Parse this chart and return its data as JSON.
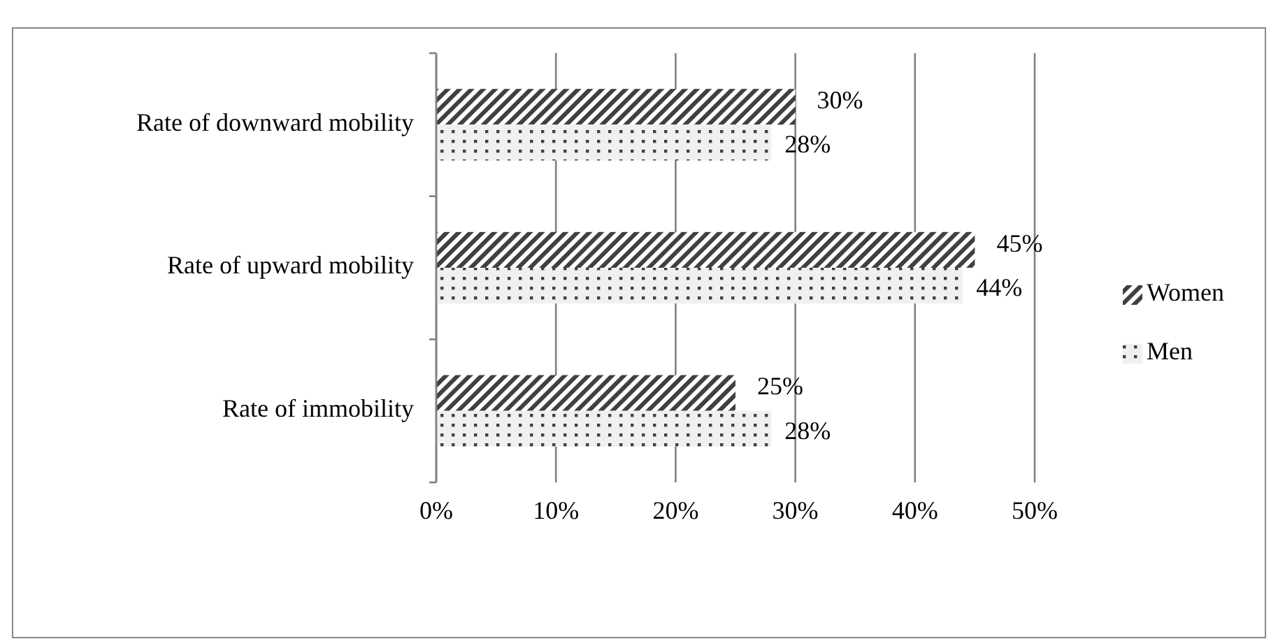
{
  "chart_data": {
    "type": "bar",
    "orientation": "horizontal",
    "categories": [
      "Rate of downward mobility",
      "Rate of upward mobility",
      "Rate of immobility"
    ],
    "series": [
      {
        "name": "Women",
        "color": "#404040",
        "values": [
          30,
          45,
          25
        ],
        "value_labels": [
          "30%",
          "45%",
          "25%"
        ]
      },
      {
        "name": "Men",
        "color": "#404040",
        "values": [
          28,
          44,
          28
        ],
        "value_labels": [
          "28%",
          "44%",
          "28%"
        ]
      }
    ],
    "xlim": [
      0,
      50
    ],
    "xticks": [
      {
        "value": 0,
        "label": "0%"
      },
      {
        "value": 10,
        "label": "10%"
      },
      {
        "value": 20,
        "label": "20%"
      },
      {
        "value": 30,
        "label": "30%"
      },
      {
        "value": 40,
        "label": "40%"
      },
      {
        "value": 50,
        "label": "50%"
      }
    ],
    "grid": "x",
    "legend": "right"
  }
}
